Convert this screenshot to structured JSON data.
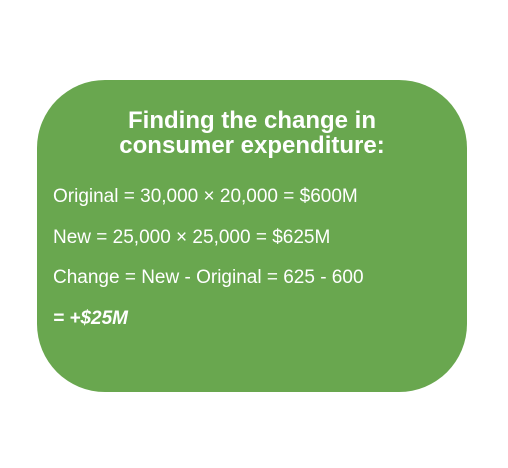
{
  "card": {
    "title_line1": "Finding the change in",
    "title_line2": "consumer expenditure:",
    "lines": [
      "Original = 30,000 × 20,000 = $600M",
      "New = 25,000 × 25,000 = $625M",
      "Change = New - Original = 625 - 600"
    ],
    "result": "= +$25M",
    "background_color": "#69a74f",
    "text_color": "#ffffff"
  }
}
